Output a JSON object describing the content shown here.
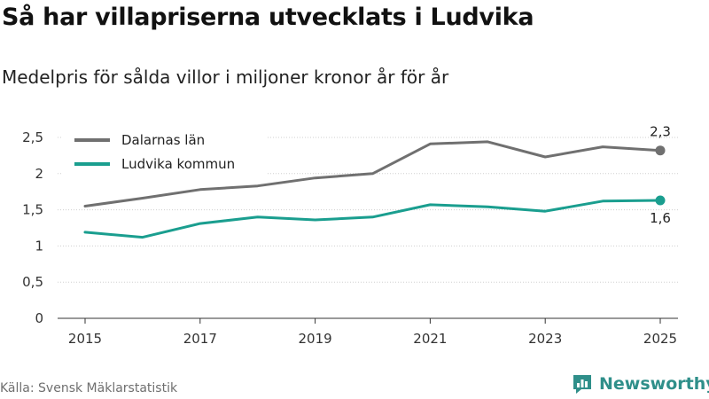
{
  "title": "Så har villapriserna utvecklats i Ludvika",
  "subtitle": "Medelpris för sålda villor i miljoner kronor år för år",
  "source": "Källa: Svensk Mäklarstatistik",
  "brand": "Newsworthy",
  "colors": {
    "gray": "#707070",
    "teal": "#1a9e8f",
    "brand": "#2f8f8a"
  },
  "chart_data": {
    "type": "line",
    "title": "Så har villapriserna utvecklats i Ludvika",
    "subtitle": "Medelpris för sålda villor i miljoner kronor år för år",
    "xlabel": "",
    "ylabel": "",
    "x": [
      2015,
      2016,
      2017,
      2018,
      2019,
      2020,
      2021,
      2022,
      2023,
      2024,
      2025
    ],
    "xticks": [
      2015,
      2017,
      2019,
      2021,
      2023,
      2025
    ],
    "yticks": [
      0,
      0.5,
      1,
      1.5,
      2,
      2.5
    ],
    "ytick_labels": [
      "0",
      "0,5",
      "1",
      "1,5",
      "2",
      "2,5"
    ],
    "ylim": [
      0,
      2.5
    ],
    "legend_position": "top-left",
    "series": [
      {
        "name": "Dalarnas län",
        "color": "#707070",
        "values": [
          1.55,
          1.66,
          1.78,
          1.83,
          1.94,
          2.0,
          2.41,
          2.44,
          2.23,
          2.37,
          2.32
        ],
        "end_label": "2,3"
      },
      {
        "name": "Ludvika kommun",
        "color": "#1a9e8f",
        "values": [
          1.19,
          1.12,
          1.31,
          1.4,
          1.36,
          1.4,
          1.57,
          1.54,
          1.48,
          1.62,
          1.63
        ],
        "end_label": "1,6"
      }
    ]
  }
}
